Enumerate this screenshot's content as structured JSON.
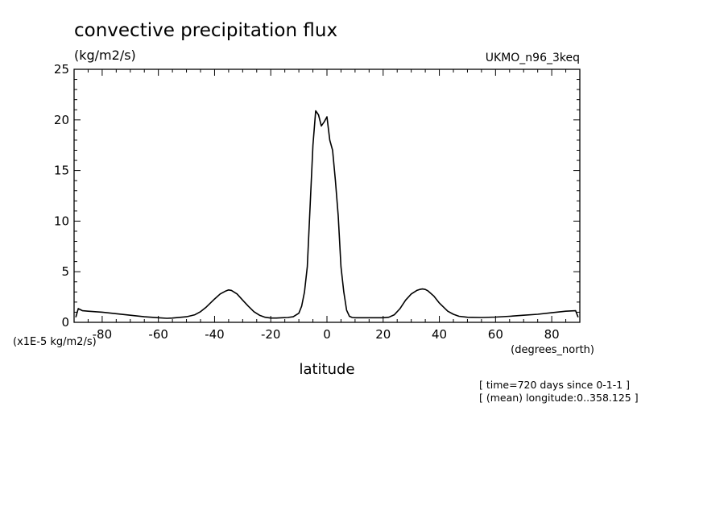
{
  "chart_data": {
    "type": "line",
    "title": "convective precipitation flux",
    "units": "(kg/m2/s)",
    "source": "UKMO_n96_3keq",
    "scale_label": "(x1E-5 kg/m2/s)",
    "xlabel": "latitude",
    "xunits": "(degrees_north)",
    "notes": [
      "[ time=720 days since 0-1-1 ]",
      "[ (mean) longitude:0..358.125 ]"
    ],
    "xlim": [
      -90,
      90
    ],
    "ylim": [
      0,
      25
    ],
    "xticks": [
      -80,
      -60,
      -40,
      -20,
      0,
      20,
      40,
      60,
      80
    ],
    "xtick_labels": [
      "-80",
      "-60",
      "-40",
      "-20",
      "0",
      "20",
      "40",
      "60",
      "80"
    ],
    "yticks": [
      0,
      5,
      10,
      15,
      20,
      25
    ],
    "ytick_labels": [
      "0",
      "5",
      "10",
      "15",
      "20",
      "25"
    ],
    "grid": false,
    "series": [
      {
        "color": "#000000",
        "x": [
          -89.4,
          -88.5,
          -87,
          -85,
          -80,
          -75,
          -70,
          -65,
          -60,
          -57,
          -55,
          -50,
          -47,
          -45,
          -43,
          -40,
          -38,
          -36,
          -35,
          -34,
          -32,
          -30,
          -28,
          -26,
          -24,
          -22,
          -20,
          -18,
          -16,
          -14,
          -12,
          -10,
          -9,
          -8,
          -7,
          -6,
          -5,
          -4,
          -3,
          -2,
          -1,
          0,
          1,
          2,
          3,
          4,
          5,
          6,
          7,
          8,
          9,
          10,
          12,
          15,
          20,
          22,
          24,
          26,
          28,
          30,
          32,
          33,
          34,
          35,
          36,
          38,
          40,
          43,
          45,
          47,
          50,
          55,
          60,
          65,
          70,
          75,
          80,
          85,
          88.5,
          89.4
        ],
        "values": [
          0.5,
          1.35,
          1.15,
          1.1,
          1.0,
          0.85,
          0.7,
          0.55,
          0.45,
          0.4,
          0.42,
          0.55,
          0.75,
          1.05,
          1.5,
          2.3,
          2.8,
          3.1,
          3.2,
          3.15,
          2.8,
          2.2,
          1.6,
          1.05,
          0.7,
          0.5,
          0.42,
          0.42,
          0.45,
          0.48,
          0.55,
          0.9,
          1.6,
          3.0,
          5.5,
          11.5,
          17.5,
          20.9,
          20.5,
          19.4,
          19.8,
          20.3,
          18.0,
          17.0,
          14.0,
          10.5,
          5.5,
          3.0,
          1.2,
          0.6,
          0.48,
          0.45,
          0.45,
          0.45,
          0.45,
          0.5,
          0.75,
          1.35,
          2.2,
          2.8,
          3.15,
          3.25,
          3.3,
          3.25,
          3.1,
          2.6,
          1.9,
          1.1,
          0.8,
          0.6,
          0.5,
          0.48,
          0.52,
          0.6,
          0.7,
          0.8,
          0.95,
          1.1,
          1.15,
          0.5
        ]
      }
    ]
  }
}
